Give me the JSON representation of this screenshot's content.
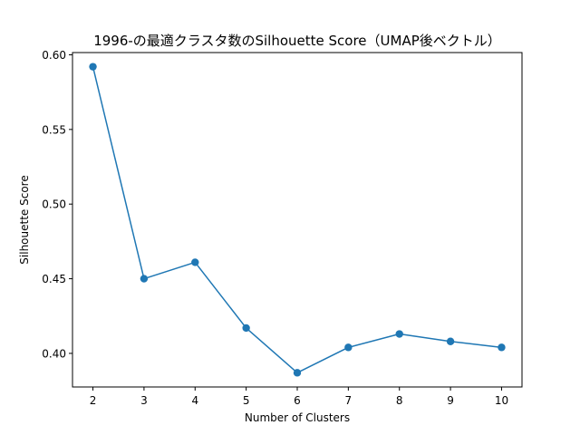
{
  "chart_data": {
    "type": "line",
    "title": "1996-の最適クラスタ数のSilhouette Score（UMAP後ベクトル）",
    "xlabel": "Number of Clusters",
    "ylabel": "Silhouette Score",
    "x": [
      2,
      3,
      4,
      5,
      6,
      7,
      8,
      9,
      10
    ],
    "series": [
      {
        "name": "Silhouette Score",
        "values": [
          0.592,
          0.45,
          0.461,
          0.417,
          0.387,
          0.404,
          0.413,
          0.408,
          0.404
        ],
        "color": "#1f77b4",
        "marker": "circle"
      }
    ],
    "xlim": [
      1.6,
      10.4
    ],
    "ylim": [
      0.3775,
      0.6015
    ],
    "xticks": [
      "2",
      "3",
      "4",
      "5",
      "6",
      "7",
      "8",
      "9",
      "10"
    ],
    "yticks": [
      "0.40",
      "0.45",
      "0.50",
      "0.55",
      "0.60"
    ],
    "ytick_values": [
      0.4,
      0.45,
      0.5,
      0.55,
      0.6
    ],
    "grid": false,
    "legend": "none"
  }
}
